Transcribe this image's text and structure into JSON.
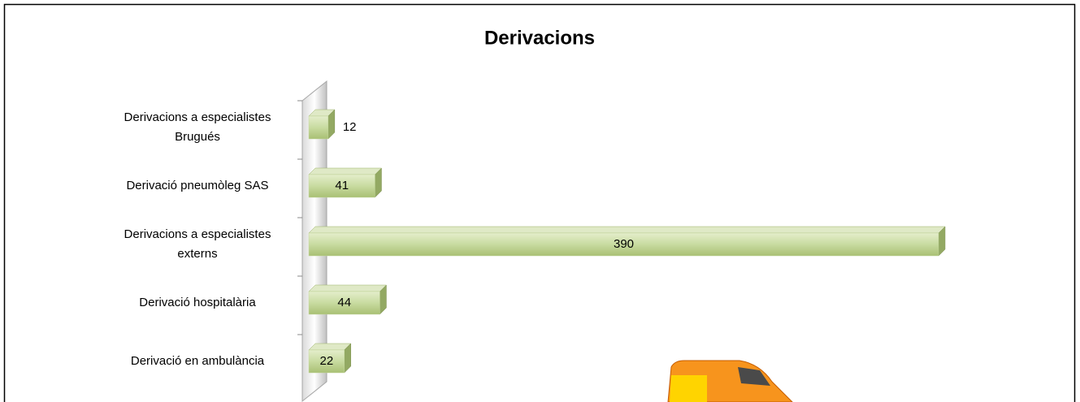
{
  "chart_data": {
    "type": "bar",
    "orientation": "horizontal",
    "title": "Derivacions",
    "categories": [
      "Derivacions a especialistes Brugués",
      "Derivació pneumòleg SAS",
      "Derivacions a especialistes externs",
      "Derivació hospitalària",
      "Derivació en ambulància"
    ],
    "values": [
      12,
      41,
      390,
      44,
      22
    ],
    "color": "#c3d69b"
  }
}
